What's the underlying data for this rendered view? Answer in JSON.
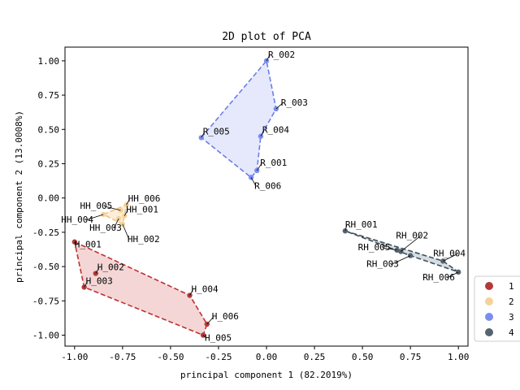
{
  "chart_data": {
    "type": "scatter",
    "title": "2D plot of PCA",
    "xlabel": "principal component 1 (82.2019%)",
    "ylabel": "principal component 2 (13.0008%)",
    "xlim": [
      -1.05,
      1.05
    ],
    "ylim": [
      -1.08,
      1.1
    ],
    "xticks": [
      -1.0,
      -0.75,
      -0.5,
      -0.25,
      0.0,
      0.25,
      0.5,
      0.75,
      1.0
    ],
    "xtick_labels": [
      "-1.00",
      "-0.75",
      "-0.50",
      "-0.25",
      "0.00",
      "0.25",
      "0.50",
      "0.75",
      "1.00"
    ],
    "yticks": [
      -1.0,
      -0.75,
      -0.5,
      -0.25,
      0.0,
      0.25,
      0.5,
      0.75,
      1.0
    ],
    "ytick_labels": [
      "-1.00",
      "-0.75",
      "-0.50",
      "-0.25",
      "0.00",
      "0.25",
      "0.50",
      "0.75",
      "1.00"
    ],
    "grid": false,
    "legend_position": "outside-right-bottom",
    "series": [
      {
        "name": "1",
        "color": "#b23a3a",
        "fill": "#f0c8c8",
        "line": "#c03030",
        "points": [
          {
            "label": "H_001",
            "x": -1.0,
            "y": -0.32
          },
          {
            "label": "H_002",
            "x": -0.89,
            "y": -0.55
          },
          {
            "label": "H_003",
            "x": -0.95,
            "y": -0.65
          },
          {
            "label": "H_004",
            "x": -0.4,
            "y": -0.71
          },
          {
            "label": "H_005",
            "x": -0.33,
            "y": -1.0
          },
          {
            "label": "H_006",
            "x": -0.31,
            "y": -0.92
          }
        ],
        "hull": [
          "H_001",
          "H_004",
          "H_006",
          "H_005",
          "H_003"
        ]
      },
      {
        "name": "2",
        "color": "#f5d29a",
        "fill": "#fbe8cc",
        "line": "#f0c078",
        "points": [
          {
            "label": "HH_001",
            "x": -0.74,
            "y": -0.13
          },
          {
            "label": "HH_002",
            "x": -0.75,
            "y": -0.19
          },
          {
            "label": "HH_003",
            "x": -0.77,
            "y": -0.15
          },
          {
            "label": "HH_004",
            "x": -0.85,
            "y": -0.12
          },
          {
            "label": "HH_005",
            "x": -0.76,
            "y": -0.09
          },
          {
            "label": "HH_006",
            "x": -0.73,
            "y": -0.05
          }
        ],
        "hull": [
          "HH_004",
          "HH_006",
          "HH_001",
          "HH_002"
        ]
      },
      {
        "name": "3",
        "color": "#7b8ef0",
        "fill": "#dde2fb",
        "line": "#6a7fe8",
        "points": [
          {
            "label": "R_001",
            "x": -0.05,
            "y": 0.2
          },
          {
            "label": "R_002",
            "x": 0.0,
            "y": 1.0
          },
          {
            "label": "R_003",
            "x": 0.05,
            "y": 0.65
          },
          {
            "label": "R_004",
            "x": -0.03,
            "y": 0.45
          },
          {
            "label": "R_005",
            "x": -0.34,
            "y": 0.44
          },
          {
            "label": "R_006",
            "x": -0.08,
            "y": 0.15
          }
        ],
        "hull": [
          "R_005",
          "R_002",
          "R_003",
          "R_004",
          "R_001",
          "R_006"
        ]
      },
      {
        "name": "4",
        "color": "#566470",
        "fill": "#c8d2d8",
        "line": "#3e4e58",
        "points": [
          {
            "label": "RH_001",
            "x": 0.41,
            "y": -0.24
          },
          {
            "label": "RH_002",
            "x": 0.7,
            "y": -0.39
          },
          {
            "label": "RH_003",
            "x": 0.75,
            "y": -0.42
          },
          {
            "label": "RH_004",
            "x": 0.92,
            "y": -0.46
          },
          {
            "label": "RH_005",
            "x": 0.68,
            "y": -0.38
          },
          {
            "label": "RH_006",
            "x": 1.0,
            "y": -0.54
          }
        ],
        "hull": [
          "RH_001",
          "RH_004",
          "RH_006",
          "RH_003"
        ]
      }
    ]
  }
}
